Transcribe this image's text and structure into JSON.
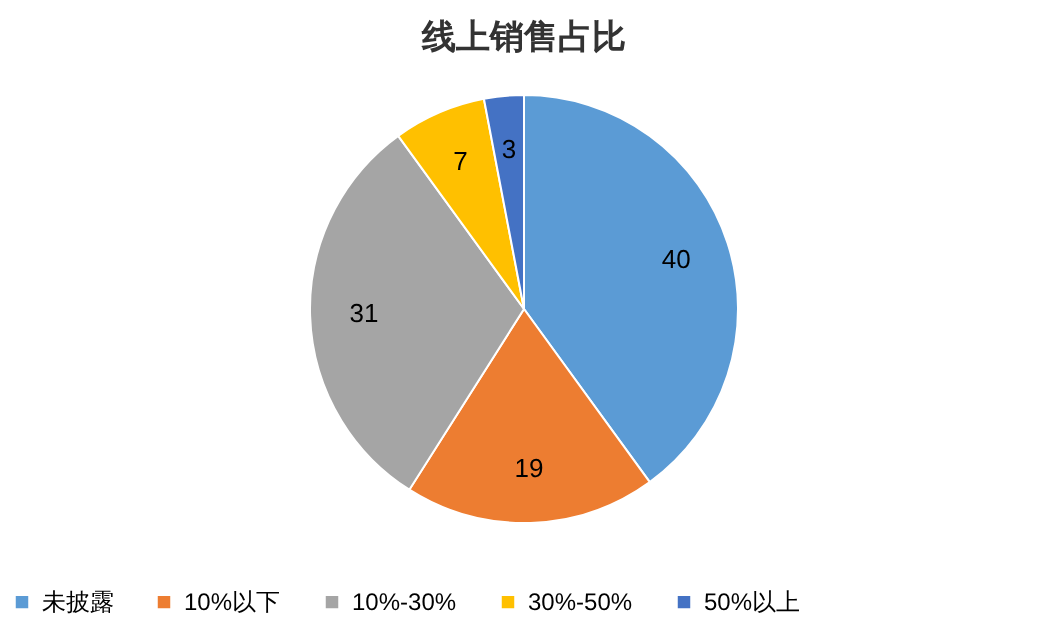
{
  "chart_data": {
    "type": "pie",
    "title": "线上销售占比",
    "categories": [
      "未披露",
      "10%以下",
      "10%-30%",
      "30%-50%",
      "50%以上"
    ],
    "values": [
      40,
      19,
      31,
      7,
      3
    ],
    "colors": [
      "#5b9bd5",
      "#ed7d31",
      "#a5a5a5",
      "#ffc000",
      "#4472c4"
    ],
    "data_labels": true,
    "legend": "bottom"
  }
}
